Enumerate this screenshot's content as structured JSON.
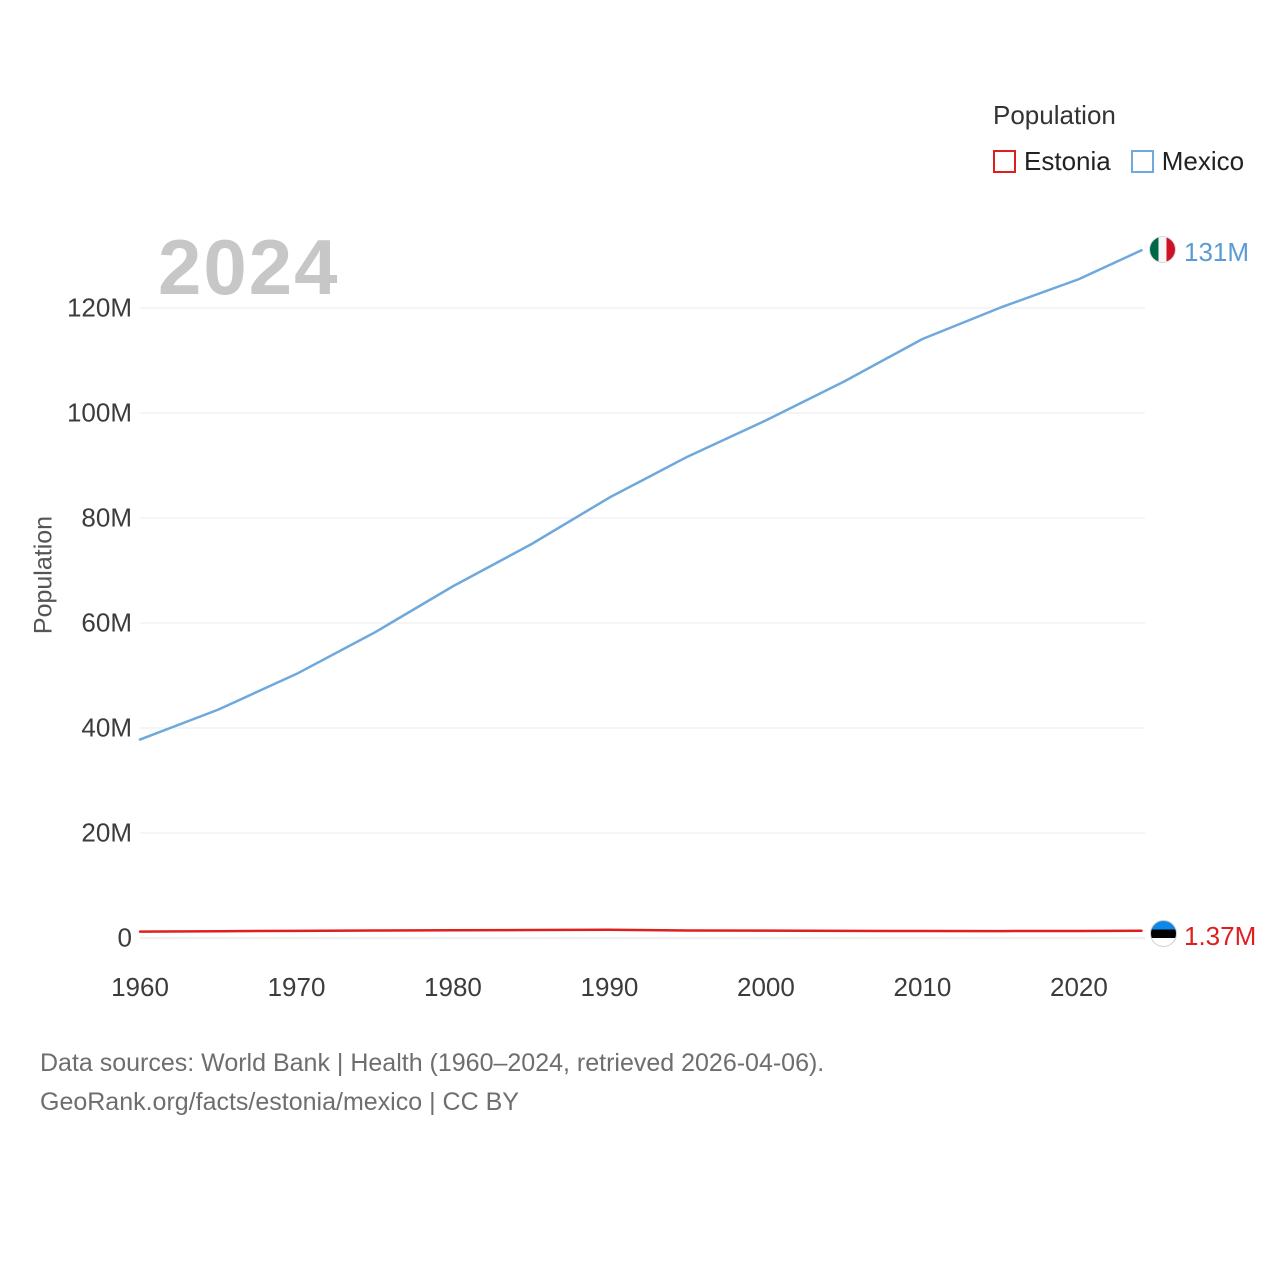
{
  "watermark": "2024",
  "legend": {
    "title": "Population",
    "items": [
      {
        "label": "Estonia",
        "color": "#e01e1e"
      },
      {
        "label": "Mexico",
        "color": "#6fa8dc"
      }
    ]
  },
  "end_labels": {
    "mexico": {
      "value": "131M",
      "flag": "mexico-flag"
    },
    "estonia": {
      "value": "1.37M",
      "flag": "estonia-flag"
    }
  },
  "footer": {
    "line1": "Data sources: World Bank | Health (1960–2024, retrieved 2026-04-06).",
    "line2": "GeoRank.org/facts/estonia/mexico | CC BY"
  },
  "chart_data": {
    "type": "line",
    "title": "2024",
    "xlabel": "",
    "ylabel": "Population",
    "y_units": "millions",
    "x": [
      1960,
      1965,
      1970,
      1975,
      1980,
      1985,
      1990,
      1995,
      2000,
      2005,
      2010,
      2015,
      2020,
      2024
    ],
    "series": [
      {
        "name": "Estonia",
        "color": "#e01e1e",
        "values": [
          1.21,
          1.29,
          1.36,
          1.43,
          1.48,
          1.52,
          1.57,
          1.44,
          1.4,
          1.35,
          1.33,
          1.32,
          1.33,
          1.37
        ]
      },
      {
        "name": "Mexico",
        "color": "#6fa8dc",
        "values": [
          37.8,
          43.5,
          50.3,
          58.2,
          67.0,
          75.0,
          83.9,
          91.7,
          98.6,
          106.0,
          114.1,
          120.1,
          125.5,
          131.0
        ]
      }
    ],
    "x_tick_values": [
      1960,
      1970,
      1980,
      1990,
      2000,
      2010,
      2020
    ],
    "x_tick_labels": [
      "1960",
      "1970",
      "1980",
      "1990",
      "2000",
      "2010",
      "2020"
    ],
    "y_tick_values": [
      0,
      20,
      40,
      60,
      80,
      100,
      120
    ],
    "y_tick_labels": [
      "0",
      "20M",
      "40M",
      "60M",
      "80M",
      "100M",
      "120M"
    ],
    "xlim": [
      1960,
      2024
    ],
    "ylim_millions": [
      0,
      120
    ],
    "grid": "horizontal",
    "legend_position": "top-right"
  }
}
